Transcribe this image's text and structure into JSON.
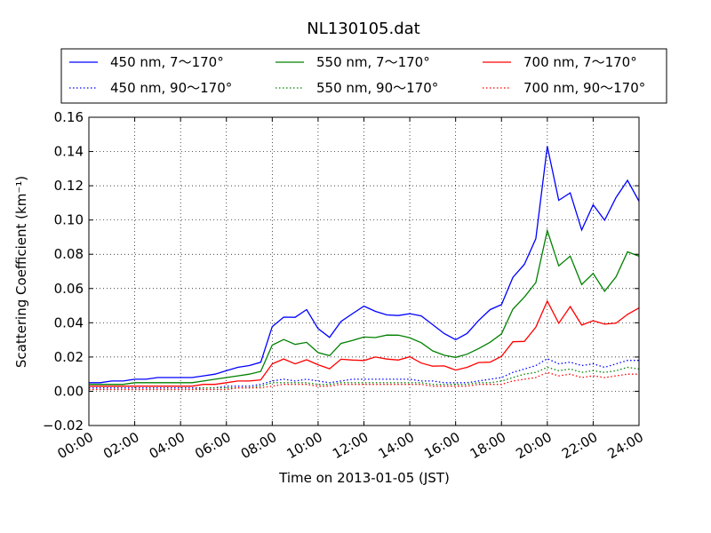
{
  "chart_data": {
    "type": "line",
    "title": "NL130105.dat",
    "xlabel": "Time on 2013-01-05 (JST)",
    "ylabel": "Scattering Coefficient (km⁻¹)",
    "xlim": [
      0,
      24
    ],
    "ylim": [
      -0.02,
      0.16
    ],
    "xticks": [
      0,
      2,
      4,
      6,
      8,
      10,
      12,
      14,
      16,
      18,
      20,
      22,
      24
    ],
    "x_tick_labels": [
      "00:00",
      "02:00",
      "04:00",
      "06:00",
      "08:00",
      "10:00",
      "12:00",
      "14:00",
      "16:00",
      "18:00",
      "20:00",
      "22:00",
      "24:00"
    ],
    "yticks": [
      -0.02,
      0.0,
      0.02,
      0.04,
      0.06,
      0.08,
      0.1,
      0.12,
      0.14,
      0.16
    ],
    "y_tick_labels": [
      "−0.02",
      "0.00",
      "0.02",
      "0.04",
      "0.06",
      "0.08",
      "0.10",
      "0.12",
      "0.14",
      "0.16"
    ],
    "grid": true,
    "legend_position": "top",
    "x": [
      0,
      0.5,
      1,
      1.5,
      2,
      2.5,
      3,
      3.5,
      4,
      4.5,
      5,
      5.5,
      6,
      6.5,
      7,
      7.5,
      8,
      8.5,
      9,
      9.5,
      10,
      10.5,
      11,
      11.5,
      12,
      12.5,
      13,
      13.5,
      14,
      14.5,
      15,
      15.5,
      16,
      16.5,
      17,
      17.5,
      18,
      18.5,
      19,
      19.5,
      20,
      20.5,
      21,
      21.5,
      22,
      22.5,
      23,
      23.5,
      24
    ],
    "series": [
      {
        "name": "450 nm, 7～170°",
        "color": "#0000ff",
        "style": "solid",
        "values": [
          0.005,
          0.005,
          0.006,
          0.006,
          0.007,
          0.007,
          0.008,
          0.008,
          0.008,
          0.008,
          0.009,
          0.01,
          0.012,
          0.014,
          0.015,
          0.017,
          0.04,
          0.045,
          0.042,
          0.045,
          0.036,
          0.033,
          0.043,
          0.045,
          0.047,
          0.045,
          0.046,
          0.047,
          0.046,
          0.042,
          0.037,
          0.034,
          0.032,
          0.035,
          0.04,
          0.045,
          0.05,
          0.07,
          0.078,
          0.088,
          0.135,
          0.108,
          0.12,
          0.1,
          0.11,
          0.095,
          0.108,
          0.125,
          0.118
        ]
      },
      {
        "name": "550 nm, 7～170°",
        "color": "#008000",
        "style": "solid",
        "values": [
          0.004,
          0.004,
          0.004,
          0.004,
          0.005,
          0.005,
          0.005,
          0.005,
          0.005,
          0.005,
          0.006,
          0.007,
          0.008,
          0.009,
          0.01,
          0.011,
          0.026,
          0.03,
          0.028,
          0.03,
          0.024,
          0.022,
          0.029,
          0.03,
          0.031,
          0.03,
          0.031,
          0.031,
          0.03,
          0.028,
          0.024,
          0.022,
          0.021,
          0.023,
          0.026,
          0.029,
          0.033,
          0.046,
          0.052,
          0.06,
          0.09,
          0.072,
          0.08,
          0.065,
          0.073,
          0.062,
          0.07,
          0.083,
          0.078
        ]
      },
      {
        "name": "700 nm, 7～170°",
        "color": "#ff0000",
        "style": "solid",
        "values": [
          0.003,
          0.003,
          0.003,
          0.003,
          0.003,
          0.003,
          0.003,
          0.003,
          0.003,
          0.003,
          0.004,
          0.004,
          0.005,
          0.006,
          0.006,
          0.007,
          0.016,
          0.018,
          0.017,
          0.018,
          0.015,
          0.014,
          0.018,
          0.018,
          0.019,
          0.019,
          0.019,
          0.019,
          0.019,
          0.017,
          0.015,
          0.014,
          0.013,
          0.014,
          0.016,
          0.018,
          0.02,
          0.028,
          0.031,
          0.036,
          0.052,
          0.042,
          0.047,
          0.039,
          0.043,
          0.037,
          0.041,
          0.046,
          0.046
        ]
      },
      {
        "name": "450 nm, 90～170°",
        "color": "#0000ff",
        "style": "dotted",
        "values": [
          0.002,
          0.002,
          0.002,
          0.002,
          0.002,
          0.002,
          0.002,
          0.002,
          0.002,
          0.002,
          0.002,
          0.002,
          0.003,
          0.003,
          0.003,
          0.004,
          0.006,
          0.007,
          0.006,
          0.007,
          0.006,
          0.005,
          0.006,
          0.007,
          0.007,
          0.007,
          0.007,
          0.007,
          0.007,
          0.006,
          0.006,
          0.005,
          0.005,
          0.005,
          0.006,
          0.007,
          0.008,
          0.011,
          0.013,
          0.015,
          0.019,
          0.016,
          0.017,
          0.015,
          0.016,
          0.014,
          0.016,
          0.018,
          0.018
        ]
      },
      {
        "name": "550 nm, 90～170°",
        "color": "#008000",
        "style": "dotted",
        "values": [
          0.001,
          0.001,
          0.001,
          0.001,
          0.001,
          0.001,
          0.001,
          0.001,
          0.001,
          0.001,
          0.002,
          0.002,
          0.002,
          0.002,
          0.002,
          0.003,
          0.005,
          0.005,
          0.005,
          0.005,
          0.004,
          0.004,
          0.005,
          0.005,
          0.005,
          0.005,
          0.005,
          0.005,
          0.005,
          0.005,
          0.004,
          0.004,
          0.004,
          0.004,
          0.005,
          0.005,
          0.006,
          0.008,
          0.01,
          0.011,
          0.014,
          0.012,
          0.013,
          0.011,
          0.012,
          0.011,
          0.012,
          0.014,
          0.013
        ]
      },
      {
        "name": "700 nm, 90～170°",
        "color": "#ff0000",
        "style": "dotted",
        "values": [
          0.001,
          0.001,
          0.001,
          0.001,
          0.001,
          0.001,
          0.001,
          0.001,
          0.001,
          0.001,
          0.001,
          0.001,
          0.001,
          0.002,
          0.002,
          0.002,
          0.003,
          0.004,
          0.004,
          0.004,
          0.003,
          0.003,
          0.004,
          0.004,
          0.004,
          0.004,
          0.004,
          0.004,
          0.004,
          0.004,
          0.003,
          0.003,
          0.003,
          0.003,
          0.004,
          0.004,
          0.004,
          0.006,
          0.007,
          0.008,
          0.011,
          0.009,
          0.01,
          0.008,
          0.009,
          0.008,
          0.009,
          0.01,
          0.01
        ]
      }
    ]
  }
}
